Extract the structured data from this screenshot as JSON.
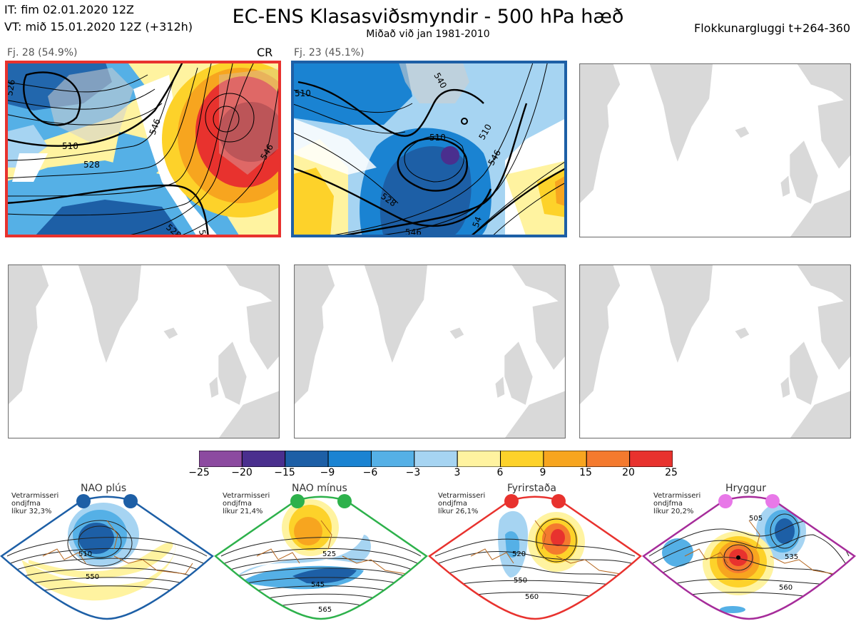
{
  "header": {
    "it": "IT: fim 02.01.2020 12Z",
    "vt": "VT: mið 15.01.2020 12Z  (+312h)",
    "title": "EC-ENS Klasasviðsmyndir - 500 hPa hæð",
    "subtitle": "Miðað við jan 1981-2010",
    "window": "Flokkunargluggi t+264-360"
  },
  "panels": [
    {
      "label": "Fj. 28 (54.9%)",
      "tag": "CR",
      "border": "#e8322e",
      "contours": [
        "526",
        "510",
        "528",
        "546",
        "546",
        "528",
        "54"
      ]
    },
    {
      "label": "Fj. 23 (45.1%)",
      "tag": "",
      "border": "#1d5fa6",
      "contours": [
        "540",
        "510",
        "510",
        "528",
        "510",
        "546",
        "546",
        "54"
      ]
    }
  ],
  "colorbar": {
    "colors": [
      "#8c4aa0",
      "#4a2f8e",
      "#1d5fa6",
      "#1a83d2",
      "#55b0e6",
      "#a6d4f2",
      "#ffffff",
      "#fff3a0",
      "#fdd22a",
      "#f7a51f",
      "#f47a2e",
      "#e8322e",
      "#b3151a"
    ],
    "ticks": [
      "−25",
      "−20",
      "−15",
      "−9",
      "−6",
      "−3",
      "3",
      "6",
      "9",
      "15",
      "20",
      "25"
    ]
  },
  "regimes": [
    {
      "name": "NAO plús",
      "info1": "Vetrarmisseri",
      "info2": "ondjfma",
      "info3": "líkur 32,3%",
      "color": "#1d5fa6",
      "labels": [
        "510",
        "550"
      ]
    },
    {
      "name": "NAO mínus",
      "info1": "Vetrarmisseri",
      "info2": "ondjfma",
      "info3": "líkur 21,4%",
      "color": "#2db14b",
      "labels": [
        "525",
        "545",
        "565"
      ]
    },
    {
      "name": "Fyrirstaða",
      "info1": "Vetrarmisseri",
      "info2": "ondjfma",
      "info3": "líkur 26,1%",
      "color": "#e8322e",
      "labels": [
        "520",
        "550",
        "560"
      ]
    },
    {
      "name": "Hryggur",
      "info1": "Vetrarmisseri",
      "info2": "ondjfma",
      "info3": "líkur 20,2%",
      "color": "#a62c9a",
      "labels": [
        "505",
        "535",
        "560"
      ]
    }
  ]
}
